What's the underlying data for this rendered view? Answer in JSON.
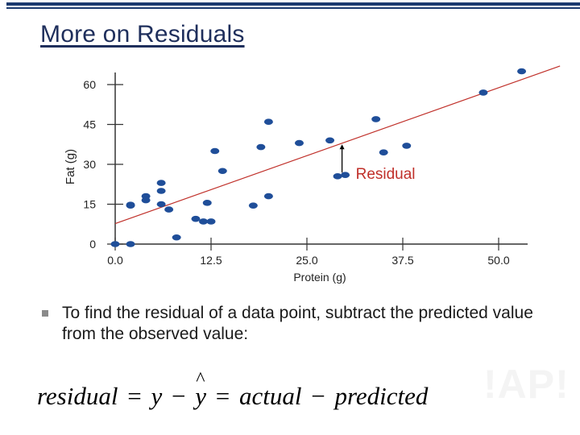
{
  "slide": {
    "title": "More on Residuals",
    "bullet": "To find the residual of a data point, subtract the predicted value from the observed value:",
    "formula": {
      "residual": "residual",
      "equals1": "=",
      "y": "y",
      "minus1": "−",
      "yhat": "y",
      "hat": "^",
      "equals2": "=",
      "actual": "actual",
      "minus2": "−",
      "predicted": "predicted"
    },
    "watermark": "!AP!"
  },
  "colors": {
    "title": "#1f2f5c",
    "accent_bar": "#1c3a6e",
    "points": "#1f4e99",
    "line": "#c0302a",
    "residual_label": "#c0302a"
  },
  "chart_data": {
    "type": "scatter",
    "title": "",
    "xlabel": "Protein (g)",
    "ylabel": "Fat (g)",
    "xlim": [
      0,
      54
    ],
    "ylim": [
      0,
      65
    ],
    "xticks": [
      0,
      12.5,
      25,
      37.5,
      50
    ],
    "xtick_labels": [
      "0.0",
      "12.5",
      "25.0",
      "37.5",
      "50.0"
    ],
    "yticks": [
      0,
      15,
      30,
      45,
      60
    ],
    "ytick_labels": [
      "0",
      "15",
      "30",
      "45",
      "60"
    ],
    "points": [
      [
        0,
        0
      ],
      [
        2,
        0
      ],
      [
        2,
        14.5
      ],
      [
        2,
        14.8
      ],
      [
        4,
        16.5
      ],
      [
        4,
        18
      ],
      [
        6,
        15
      ],
      [
        6,
        20
      ],
      [
        6,
        23
      ],
      [
        7,
        13
      ],
      [
        8,
        2.5
      ],
      [
        10.5,
        9.5
      ],
      [
        11.5,
        8.5
      ],
      [
        12,
        15.5
      ],
      [
        12.5,
        8.5
      ],
      [
        13,
        35
      ],
      [
        14,
        27.5
      ],
      [
        18,
        14.5
      ],
      [
        19,
        36.5
      ],
      [
        20,
        18
      ],
      [
        20,
        46
      ],
      [
        24,
        38
      ],
      [
        28,
        39
      ],
      [
        29,
        25.5
      ],
      [
        30,
        26
      ],
      [
        34,
        47
      ],
      [
        35,
        34.5
      ],
      [
        38,
        37
      ],
      [
        48,
        57
      ],
      [
        53,
        65
      ]
    ],
    "regression_line": {
      "x1": 0,
      "y1": 7.7,
      "x2": 58,
      "y2": 67
    },
    "residual_highlight": {
      "x": 30,
      "observed": 26,
      "predicted": 37.5,
      "label": "Residual"
    }
  }
}
